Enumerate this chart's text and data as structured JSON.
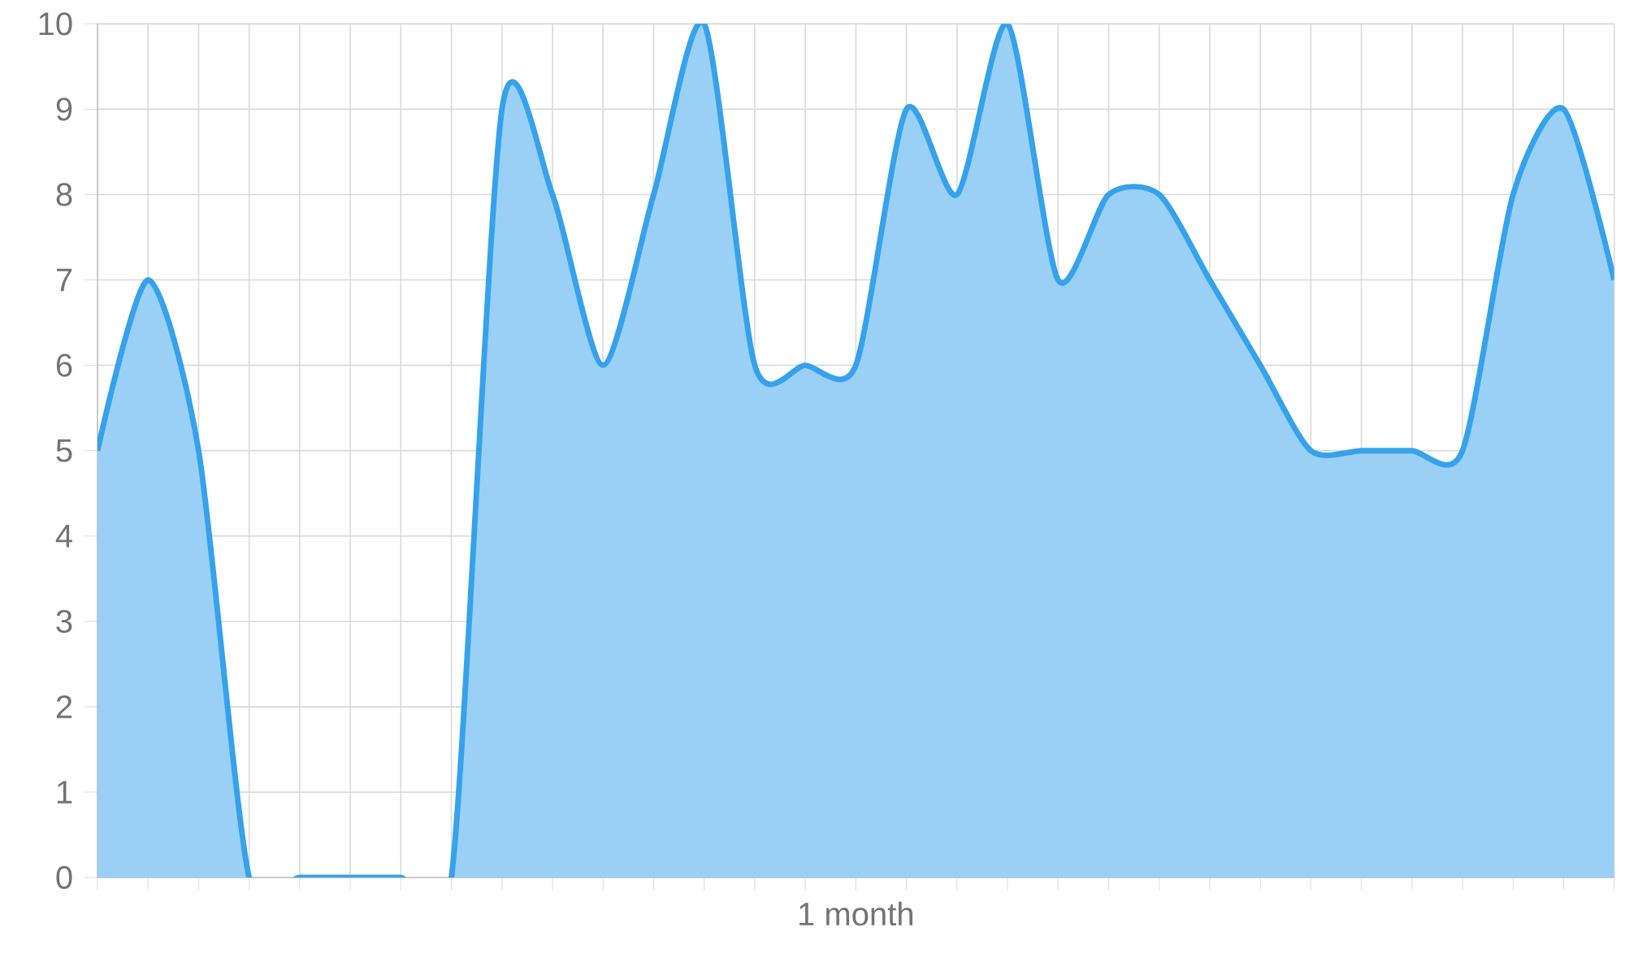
{
  "chart_data": {
    "type": "area",
    "categories": [
      null,
      null,
      null,
      null,
      null,
      null,
      null,
      null,
      null,
      null,
      null,
      null,
      null,
      null,
      null,
      "1 month",
      null,
      null,
      null,
      null,
      null,
      null,
      null,
      null,
      null,
      null,
      null,
      null,
      null,
      null,
      null
    ],
    "series": [
      {
        "color": "#36a2eb",
        "values": [
          5,
          7,
          5,
          0,
          0,
          0,
          0,
          0,
          9,
          8,
          6,
          8,
          10,
          6,
          6,
          6,
          9,
          8,
          10,
          7,
          8,
          8,
          7,
          6,
          5,
          5,
          5,
          5,
          8,
          9,
          7
        ]
      }
    ],
    "ylim": [
      0,
      10
    ],
    "yticks": [
      0,
      1,
      2,
      3,
      4,
      5,
      6,
      7,
      8,
      9,
      10
    ],
    "grid": true
  }
}
